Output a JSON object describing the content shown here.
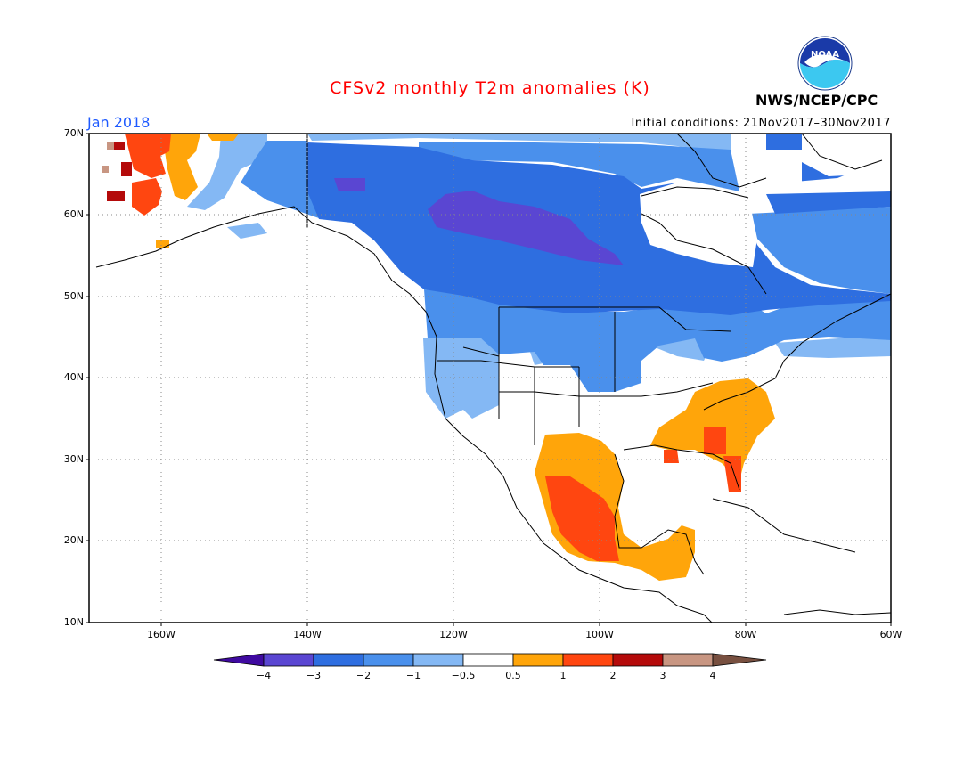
{
  "title": "CFSv2 monthly T2m anomalies (K)",
  "month": "Jan 2018",
  "initial_conditions": "Initial conditions: 21Nov2017–30Nov2017",
  "agency": "NWS/NCEP/CPC",
  "logo_text": "NOAA",
  "colors": {
    "title": "#ff0000",
    "month": "#1e5aff",
    "c_m4": "#3f0aa0",
    "c_m3": "#5a46d2",
    "c_m2": "#2e6ee0",
    "c_m1": "#4a90ec",
    "c_m05": "#84b8f4",
    "c_0": "#ffffff",
    "c_p05": "#ffa50a",
    "c_p1": "#ff4610",
    "c_p2": "#b40a0a",
    "c_p3": "#c89682",
    "c_p4": "#785040"
  },
  "axes": {
    "lat_labels": [
      "70N",
      "60N",
      "50N",
      "40N",
      "30N",
      "20N",
      "10N"
    ],
    "lon_labels": [
      "160W",
      "140W",
      "120W",
      "100W",
      "80W",
      "60W"
    ]
  },
  "colorbar": {
    "labels": [
      "−4",
      "−3",
      "−2",
      "−1",
      "−0.5",
      "0.5",
      "1",
      "2",
      "3",
      "4"
    ]
  }
}
